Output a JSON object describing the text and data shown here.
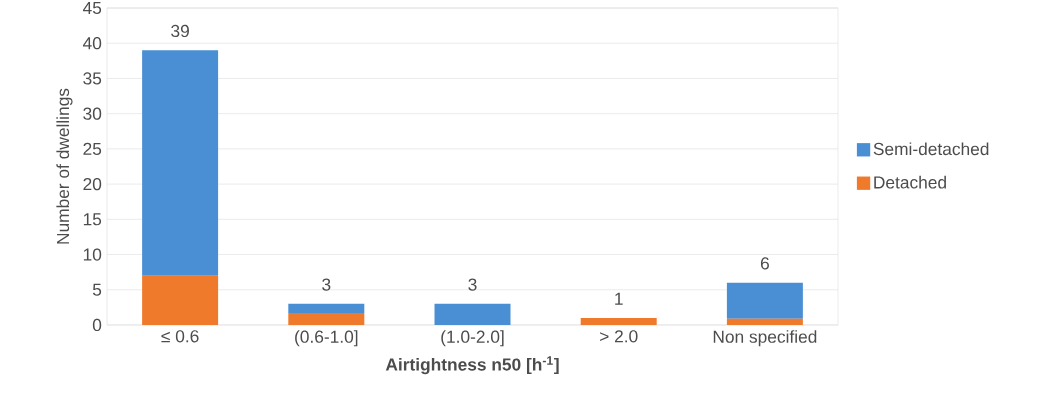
{
  "chart_data": {
    "type": "bar",
    "stacked": true,
    "xlabel": "Airtightness n50 [h$^{-1}$]",
    "ylabel": "Number of dwellings",
    "categories": [
      "≤ 0.6",
      "(0.6-1.0]",
      "(1.0-2.0]",
      "> 2.0",
      "Non specified"
    ],
    "series": [
      {
        "name": "Detached",
        "color": "#ef7a2c",
        "values": [
          7,
          1.7,
          0,
          1,
          0.9
        ]
      },
      {
        "name": "Semi-detached",
        "color": "#4a8fd4",
        "values": [
          32,
          1.3,
          3,
          0,
          5.1
        ]
      }
    ],
    "totals": [
      "39",
      "3",
      "3",
      "1",
      "6"
    ],
    "ylim": [
      0,
      45
    ],
    "yticks": [
      0,
      5,
      10,
      15,
      20,
      25,
      30,
      35,
      40,
      45
    ],
    "grid": "y",
    "legend": "right"
  }
}
